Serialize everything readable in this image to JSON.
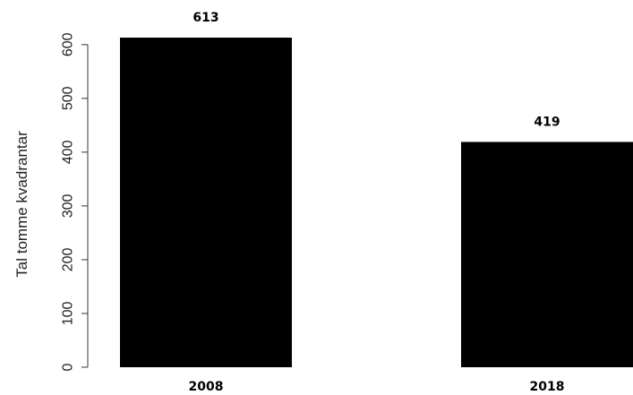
{
  "chart_data": {
    "type": "bar",
    "categories": [
      "2008",
      "2018"
    ],
    "values": [
      613,
      419
    ],
    "data_labels": [
      "613",
      "419"
    ],
    "title": "",
    "xlabel": "",
    "ylabel": "Tal tomme kvadrantar",
    "ylim": [
      0,
      613
    ],
    "yticks": [
      0,
      100,
      200,
      300,
      400,
      500,
      600
    ],
    "grid": false,
    "legend": "none",
    "bar_color": "#000000",
    "axis_color": "#333333"
  }
}
